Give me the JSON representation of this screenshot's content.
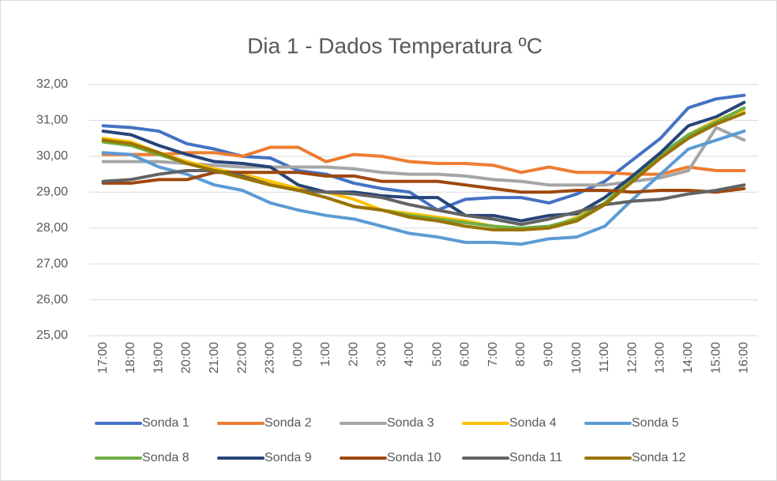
{
  "chart_data": {
    "type": "line",
    "title": "Dia 1 - Dados Temperatura ºC",
    "categories": [
      "17:00",
      "18:00",
      "19:00",
      "20:00",
      "21:00",
      "22:00",
      "23:00",
      "0:00",
      "1:00",
      "2:00",
      "3:00",
      "4:00",
      "5:00",
      "6:00",
      "7:00",
      "8:00",
      "9:00",
      "10:00",
      "11:00",
      "12:00",
      "13:00",
      "14:00",
      "15:00",
      "16:00"
    ],
    "series": [
      {
        "name": "Sonda 1",
        "color": "#4472c4",
        "values": [
          30.85,
          30.8,
          30.7,
          30.35,
          30.2,
          30.0,
          29.95,
          29.6,
          29.5,
          29.25,
          29.1,
          29.0,
          28.5,
          28.8,
          28.85,
          28.85,
          28.7,
          28.95,
          29.3,
          29.9,
          30.5,
          31.35,
          31.6,
          31.7
        ]
      },
      {
        "name": "Sonda 2",
        "color": "#ed7d31",
        "values": [
          30.05,
          30.05,
          30.05,
          30.1,
          30.1,
          30.0,
          30.25,
          30.25,
          29.85,
          30.05,
          30.0,
          29.85,
          29.8,
          29.8,
          29.75,
          29.55,
          29.7,
          29.55,
          29.55,
          29.5,
          29.5,
          29.7,
          29.6,
          29.6
        ]
      },
      {
        "name": "Sonda 3",
        "color": "#a5a5a5",
        "values": [
          29.85,
          29.85,
          29.85,
          29.8,
          29.75,
          29.7,
          29.7,
          29.7,
          29.7,
          29.65,
          29.55,
          29.5,
          29.5,
          29.45,
          29.35,
          29.3,
          29.2,
          29.2,
          29.2,
          29.3,
          29.4,
          29.6,
          30.8,
          30.45
        ]
      },
      {
        "name": "Sonda 4",
        "color": "#ffc000",
        "values": [
          30.5,
          30.4,
          30.1,
          29.85,
          29.65,
          29.5,
          29.3,
          29.1,
          29.0,
          28.8,
          28.5,
          28.4,
          28.3,
          28.2,
          28.05,
          27.95,
          28.0,
          28.3,
          28.7,
          29.3,
          30.0,
          30.6,
          31.0,
          31.3
        ]
      },
      {
        "name": "Sonda 5",
        "color": "#5b9bd5",
        "values": [
          30.1,
          30.05,
          29.7,
          29.5,
          29.2,
          29.05,
          28.7,
          28.5,
          28.35,
          28.25,
          28.05,
          27.85,
          27.75,
          27.6,
          27.6,
          27.55,
          27.7,
          27.75,
          28.05,
          28.8,
          29.5,
          30.2,
          30.45,
          30.7
        ]
      },
      {
        "name": "Sonda 8",
        "color": "#70ad47",
        "values": [
          30.4,
          30.3,
          30.05,
          29.8,
          29.6,
          29.4,
          29.2,
          29.05,
          28.85,
          28.6,
          28.5,
          28.35,
          28.25,
          28.15,
          28.05,
          28.0,
          28.05,
          28.25,
          28.7,
          29.4,
          30.05,
          30.6,
          30.95,
          31.35
        ]
      },
      {
        "name": "Sonda 9",
        "color": "#264478",
        "values": [
          30.7,
          30.6,
          30.3,
          30.05,
          29.85,
          29.8,
          29.7,
          29.2,
          29.0,
          29.0,
          28.9,
          28.85,
          28.85,
          28.35,
          28.35,
          28.2,
          28.35,
          28.4,
          28.85,
          29.45,
          30.1,
          30.85,
          31.1,
          31.5
        ]
      },
      {
        "name": "Sonda 10",
        "color": "#9e480e",
        "values": [
          29.25,
          29.25,
          29.35,
          29.35,
          29.55,
          29.55,
          29.55,
          29.55,
          29.45,
          29.45,
          29.3,
          29.3,
          29.3,
          29.2,
          29.1,
          29.0,
          29.0,
          29.05,
          29.05,
          29.0,
          29.05,
          29.05,
          29.0,
          29.1
        ]
      },
      {
        "name": "Sonda 11",
        "color": "#636363",
        "values": [
          29.3,
          29.35,
          29.5,
          29.6,
          29.6,
          29.45,
          29.2,
          29.05,
          29.0,
          28.95,
          28.85,
          28.65,
          28.5,
          28.35,
          28.25,
          28.1,
          28.25,
          28.45,
          28.65,
          28.75,
          28.8,
          28.95,
          29.05,
          29.2
        ]
      },
      {
        "name": "Sonda 12",
        "color": "#997300",
        "values": [
          30.45,
          30.35,
          30.1,
          29.8,
          29.6,
          29.4,
          29.2,
          29.05,
          28.85,
          28.6,
          28.5,
          28.3,
          28.2,
          28.05,
          27.95,
          27.95,
          28.0,
          28.2,
          28.65,
          29.3,
          29.95,
          30.5,
          30.9,
          31.2
        ]
      }
    ],
    "ylim": [
      25,
      32
    ],
    "yticks": [
      {
        "value": 25,
        "label": "25,00"
      },
      {
        "value": 26,
        "label": "26,00"
      },
      {
        "value": 27,
        "label": "27,00"
      },
      {
        "value": 28,
        "label": "28,00"
      },
      {
        "value": 29,
        "label": "29,00"
      },
      {
        "value": 30,
        "label": "30,00"
      },
      {
        "value": 31,
        "label": "31,00"
      },
      {
        "value": 32,
        "label": "32,00"
      }
    ],
    "grid": true,
    "legend": "bottom"
  }
}
